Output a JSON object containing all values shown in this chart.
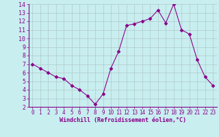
{
  "x": [
    0,
    1,
    2,
    3,
    4,
    5,
    6,
    7,
    8,
    9,
    10,
    11,
    12,
    13,
    14,
    15,
    16,
    17,
    18,
    19,
    20,
    21,
    22,
    23
  ],
  "y": [
    7.0,
    6.5,
    6.0,
    5.5,
    5.3,
    4.5,
    4.0,
    3.3,
    2.3,
    3.5,
    6.5,
    8.5,
    11.5,
    11.7,
    12.0,
    12.3,
    13.3,
    11.8,
    14.0,
    11.0,
    10.5,
    7.5,
    5.5,
    4.5
  ],
  "line_color": "#880088",
  "marker": "D",
  "marker_size": 2.5,
  "bg_color": "#c8eef0",
  "grid_color": "#b0c8c8",
  "xlabel": "Windchill (Refroidissement éolien,°C)",
  "xlabel_color": "#880088",
  "tick_color": "#880088",
  "ylim": [
    2,
    14
  ],
  "yticks": [
    2,
    3,
    4,
    5,
    6,
    7,
    8,
    9,
    10,
    11,
    12,
    13,
    14
  ],
  "xlim": [
    -0.5,
    23.5
  ],
  "xticks": [
    0,
    1,
    2,
    3,
    4,
    5,
    6,
    7,
    8,
    9,
    10,
    11,
    12,
    13,
    14,
    15,
    16,
    17,
    18,
    19,
    20,
    21,
    22,
    23
  ]
}
